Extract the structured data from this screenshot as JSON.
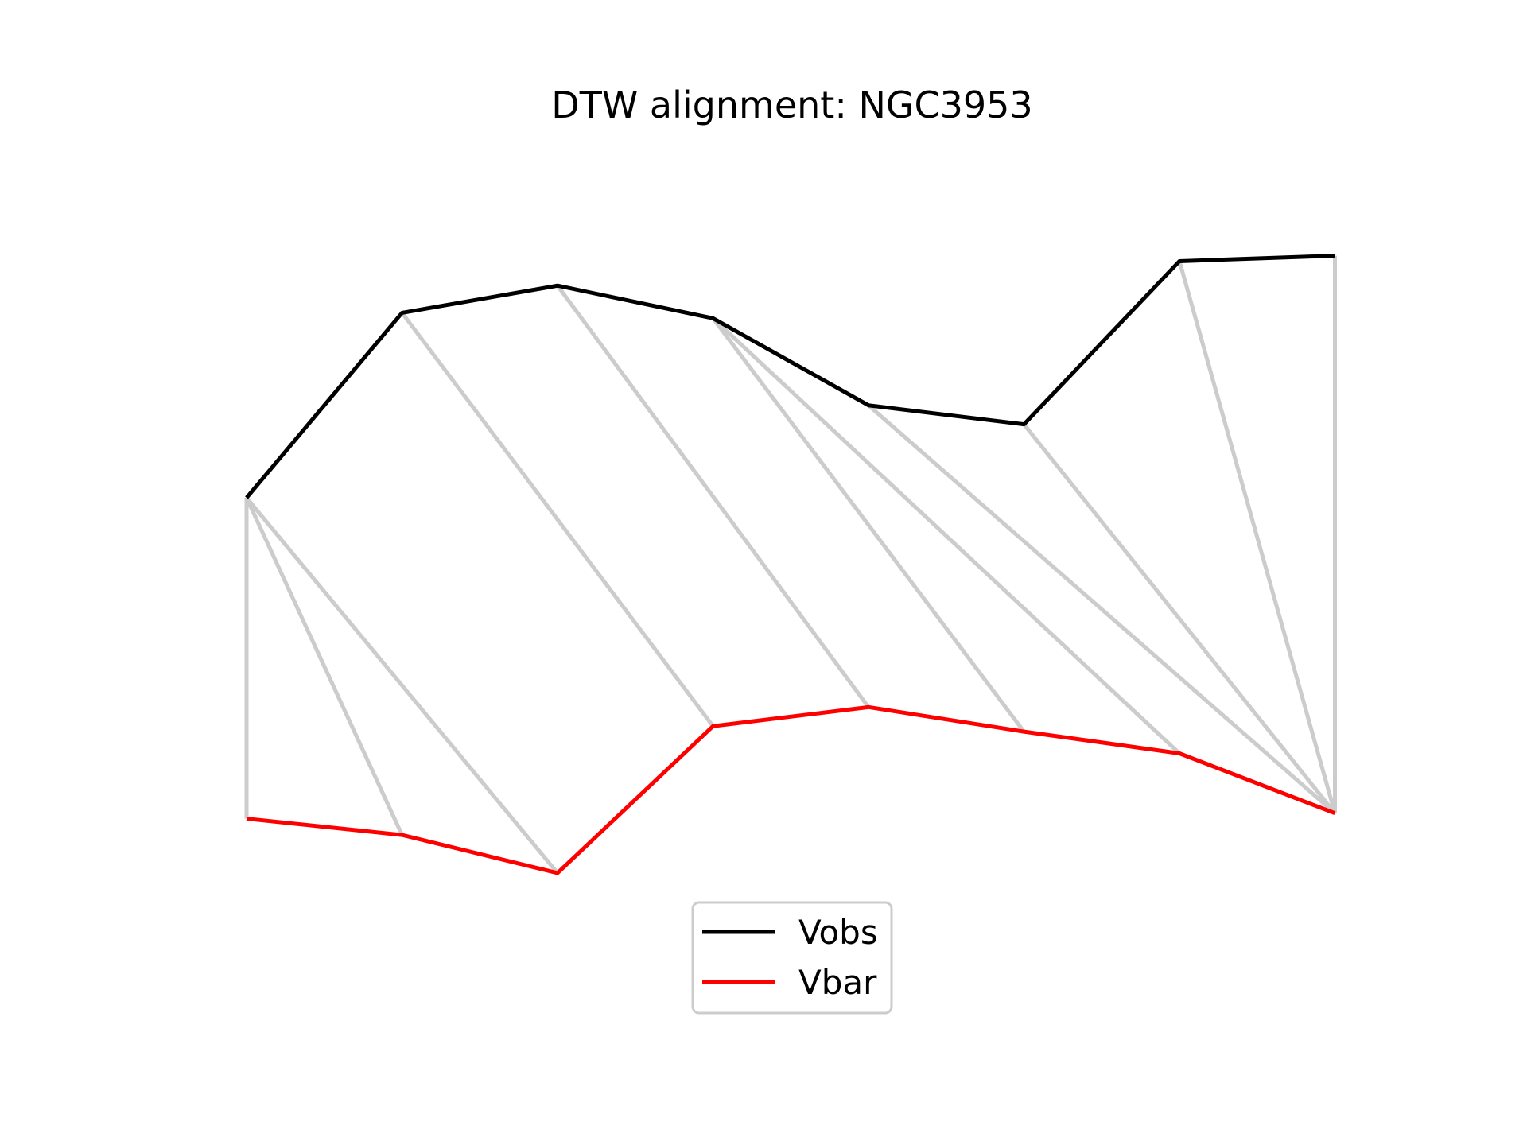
{
  "chart_data": {
    "type": "line",
    "title": "DTW alignment: NGC3953",
    "xlabel": "",
    "ylabel": "",
    "axes_visible": false,
    "grid": false,
    "legend_position": "lower-center",
    "series": [
      {
        "name": "Vobs",
        "color": "#000000",
        "x": [
          0,
          1,
          2,
          3,
          4,
          5,
          6,
          7
        ],
        "values": [
          0.71,
          1.39,
          1.49,
          1.37,
          1.05,
          0.98,
          1.58,
          1.6
        ]
      },
      {
        "name": "Vbar",
        "color": "#ff0000",
        "x": [
          0,
          1,
          2,
          3,
          4,
          5,
          6,
          7
        ],
        "values": [
          -0.47,
          -0.53,
          -0.67,
          -0.13,
          -0.06,
          -0.15,
          -0.23,
          -0.45
        ]
      }
    ],
    "alignment": {
      "color": "#cccccc",
      "pairs": [
        [
          0,
          0
        ],
        [
          0,
          1
        ],
        [
          0,
          2
        ],
        [
          1,
          3
        ],
        [
          2,
          4
        ],
        [
          3,
          5
        ],
        [
          3,
          6
        ],
        [
          4,
          7
        ],
        [
          5,
          7
        ],
        [
          6,
          7
        ],
        [
          7,
          7
        ]
      ]
    }
  }
}
